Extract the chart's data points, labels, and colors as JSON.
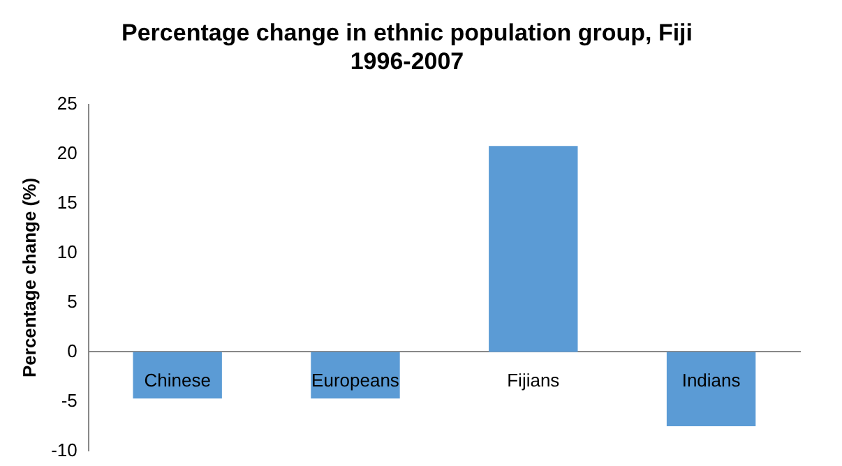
{
  "chart_data": {
    "type": "bar",
    "title": "Percentage change in ethnic population group, Fiji\n1996-2007",
    "ylabel": "Percentage change (%)",
    "categories": [
      "Chinese",
      "Europeans",
      "Fijians",
      "Indians"
    ],
    "values": [
      -4.7,
      -4.7,
      20.8,
      -7.5
    ],
    "color": "#5b9bd5",
    "ylim": [
      -10,
      25
    ],
    "yticks": [
      -10,
      -5,
      0,
      5,
      10,
      15,
      20,
      25
    ],
    "grid": false,
    "legend": false
  }
}
